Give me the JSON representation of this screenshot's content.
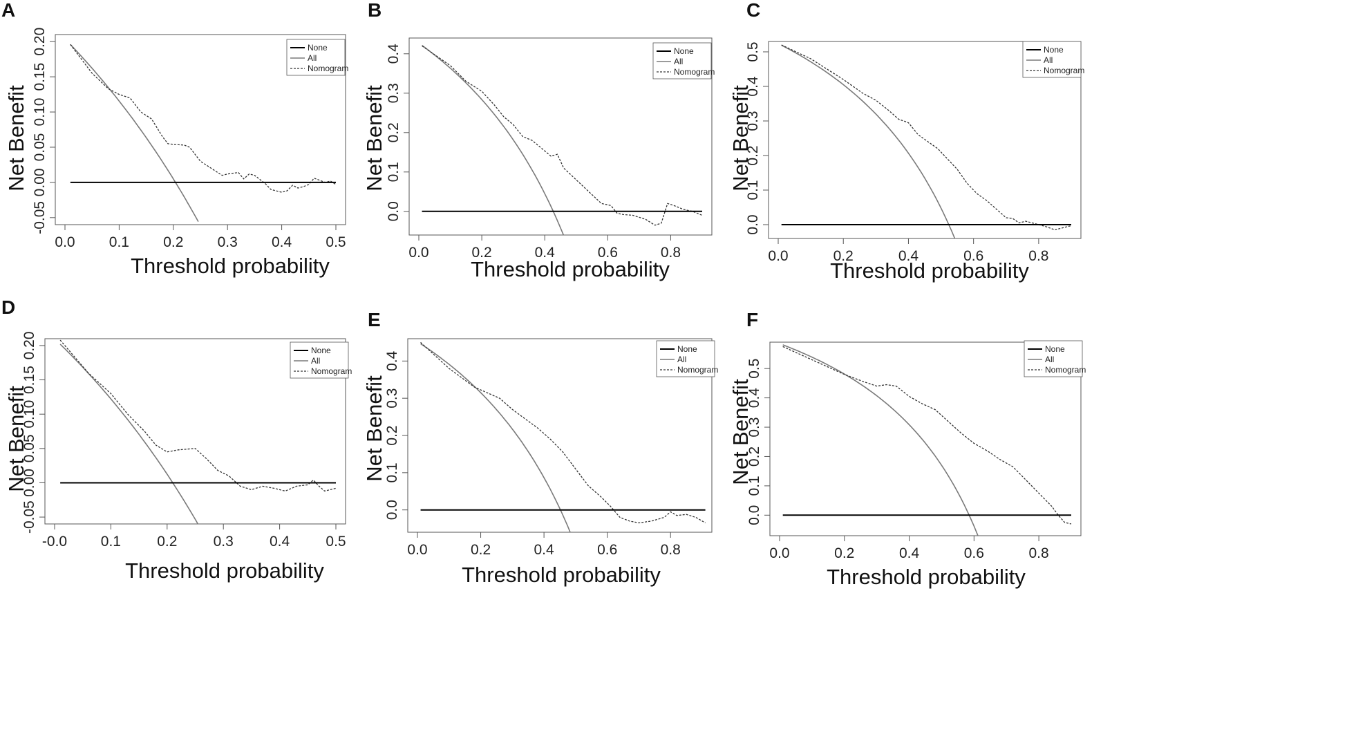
{
  "figure": {
    "labels": [
      "A",
      "B",
      "C",
      "D",
      "E",
      "F"
    ]
  },
  "legend": {
    "items": [
      "None",
      "All",
      "Nomogram"
    ]
  },
  "colors": {
    "none": "#000000",
    "all": "#7a7a7a",
    "nomogram": "#333333",
    "axis": "#555555"
  },
  "chart_data": [
    {
      "type": "line",
      "panel": "A",
      "xlabel": "Threshold probability",
      "ylabel": "Net Benefit",
      "xlim": [
        0.0,
        0.5
      ],
      "ylim": [
        -0.06,
        0.21
      ],
      "xticks": [
        0.0,
        0.1,
        0.2,
        0.3,
        0.4,
        0.5
      ],
      "xtick_labels": [
        "0.0",
        "0.1",
        "0.2",
        "0.3",
        "0.4",
        "0.5"
      ],
      "yticks": [
        -0.05,
        0.0,
        0.05,
        0.1,
        0.15,
        0.2
      ],
      "ytick_labels": [
        "-0.05",
        "0.00",
        "0.05",
        "0.10",
        "0.15",
        "0.20"
      ],
      "legend_position": "top-right",
      "series": [
        {
          "name": "None",
          "x": [
            0.01,
            0.5
          ],
          "y": [
            0.0,
            0.0
          ]
        },
        {
          "name": "All",
          "prevalence": 0.204,
          "x_end": 0.246
        },
        {
          "name": "Nomogram",
          "x": [
            0.01,
            0.05,
            0.08,
            0.1,
            0.12,
            0.14,
            0.16,
            0.18,
            0.19,
            0.2,
            0.22,
            0.23,
            0.25,
            0.27,
            0.29,
            0.3,
            0.32,
            0.33,
            0.34,
            0.35,
            0.37,
            0.38,
            0.4,
            0.41,
            0.42,
            0.43,
            0.44,
            0.45,
            0.46,
            0.47,
            0.48,
            0.49,
            0.5
          ],
          "y": [
            0.196,
            0.155,
            0.133,
            0.125,
            0.12,
            0.1,
            0.09,
            0.065,
            0.055,
            0.054,
            0.053,
            0.05,
            0.03,
            0.02,
            0.01,
            0.012,
            0.014,
            0.005,
            0.012,
            0.01,
            -0.002,
            -0.01,
            -0.014,
            -0.012,
            -0.004,
            -0.008,
            -0.006,
            -0.003,
            0.006,
            0.003,
            0.0,
            0.002,
            -0.003
          ]
        }
      ]
    },
    {
      "type": "line",
      "panel": "B",
      "xlabel": "Threshold probability",
      "ylabel": "Net Benefit",
      "xlim": [
        0.0,
        0.9
      ],
      "ylim": [
        -0.06,
        0.44
      ],
      "xticks": [
        0.0,
        0.2,
        0.4,
        0.6,
        0.8
      ],
      "xtick_labels": [
        "0.0",
        "0.2",
        "0.4",
        "0.6",
        "0.8"
      ],
      "yticks": [
        0.0,
        0.1,
        0.2,
        0.3,
        0.4
      ],
      "ytick_labels": [
        "0.0",
        "0.1",
        "0.2",
        "0.3",
        "0.4"
      ],
      "legend_position": "top-right",
      "series": [
        {
          "name": "None",
          "x": [
            0.01,
            0.9
          ],
          "y": [
            0.0,
            0.0
          ]
        },
        {
          "name": "All",
          "prevalence": 0.427,
          "x_end": 0.46
        },
        {
          "name": "Nomogram",
          "x": [
            0.01,
            0.1,
            0.15,
            0.2,
            0.24,
            0.27,
            0.3,
            0.33,
            0.36,
            0.39,
            0.42,
            0.44,
            0.46,
            0.5,
            0.54,
            0.58,
            0.61,
            0.63,
            0.65,
            0.68,
            0.72,
            0.75,
            0.77,
            0.79,
            0.81,
            0.84,
            0.87,
            0.9
          ],
          "y": [
            0.42,
            0.37,
            0.33,
            0.305,
            0.27,
            0.24,
            0.22,
            0.19,
            0.18,
            0.16,
            0.14,
            0.145,
            0.11,
            0.08,
            0.05,
            0.02,
            0.015,
            -0.005,
            -0.008,
            -0.01,
            -0.02,
            -0.035,
            -0.03,
            0.02,
            0.015,
            0.005,
            0.0,
            -0.01
          ]
        }
      ]
    },
    {
      "type": "line",
      "panel": "C",
      "xlabel": "Threshold probability",
      "ylabel": "Net Benefit",
      "xlim": [
        0.0,
        0.9
      ],
      "ylim": [
        -0.04,
        0.53
      ],
      "xticks": [
        0.0,
        0.2,
        0.4,
        0.6,
        0.8
      ],
      "xtick_labels": [
        "0.0",
        "0.2",
        "0.4",
        "0.6",
        "0.8"
      ],
      "yticks": [
        0.0,
        0.1,
        0.2,
        0.3,
        0.4,
        0.5
      ],
      "ytick_labels": [
        "0.0",
        "0.1",
        "0.2",
        "0.3",
        "0.4",
        "0.5"
      ],
      "legend_position": "top-right",
      "series": [
        {
          "name": "None",
          "x": [
            0.01,
            0.9
          ],
          "y": [
            0.0,
            0.0
          ]
        },
        {
          "name": "All",
          "prevalence": 0.524,
          "x_end": 0.56
        },
        {
          "name": "Nomogram",
          "x": [
            0.01,
            0.1,
            0.2,
            0.26,
            0.3,
            0.34,
            0.37,
            0.4,
            0.43,
            0.46,
            0.49,
            0.52,
            0.55,
            0.58,
            0.61,
            0.64,
            0.67,
            0.7,
            0.72,
            0.74,
            0.76,
            0.78,
            0.8,
            0.82,
            0.85,
            0.87,
            0.9
          ],
          "y": [
            0.52,
            0.48,
            0.42,
            0.38,
            0.36,
            0.33,
            0.305,
            0.295,
            0.26,
            0.24,
            0.22,
            0.19,
            0.16,
            0.12,
            0.09,
            0.07,
            0.045,
            0.02,
            0.018,
            0.005,
            0.01,
            0.005,
            0.0,
            -0.005,
            -0.015,
            -0.01,
            -0.003
          ]
        }
      ]
    },
    {
      "type": "line",
      "panel": "D",
      "xlabel": "Threshold probability",
      "ylabel": "Net Benefit",
      "xlim": [
        0.0,
        0.5
      ],
      "ylim": [
        -0.06,
        0.21
      ],
      "xticks": [
        0.0,
        0.1,
        0.2,
        0.3,
        0.4,
        0.5
      ],
      "xtick_labels": [
        "-0.0",
        "0.1",
        "0.2",
        "0.3",
        "0.4",
        "0.5"
      ],
      "yticks": [
        -0.05,
        0.0,
        0.05,
        0.1,
        0.15,
        0.2
      ],
      "ytick_labels": [
        "-0.05",
        "0.00",
        "0.05",
        "0.10",
        "0.15",
        "0.20"
      ],
      "legend_position": "top-right",
      "series": [
        {
          "name": "None",
          "x": [
            0.01,
            0.5
          ],
          "y": [
            0.0,
            0.0
          ]
        },
        {
          "name": "All",
          "prevalence": 0.21,
          "x_end": 0.26
        },
        {
          "name": "Nomogram",
          "x": [
            0.01,
            0.06,
            0.1,
            0.13,
            0.16,
            0.18,
            0.2,
            0.22,
            0.25,
            0.27,
            0.29,
            0.31,
            0.33,
            0.35,
            0.37,
            0.39,
            0.41,
            0.43,
            0.45,
            0.46,
            0.47,
            0.48,
            0.5
          ],
          "y": [
            0.208,
            0.16,
            0.13,
            0.1,
            0.075,
            0.055,
            0.045,
            0.048,
            0.05,
            0.035,
            0.018,
            0.01,
            -0.005,
            -0.01,
            -0.005,
            -0.008,
            -0.012,
            -0.005,
            -0.003,
            0.004,
            -0.005,
            -0.012,
            -0.008
          ]
        }
      ]
    },
    {
      "type": "line",
      "panel": "E",
      "xlabel": "Threshold probability",
      "ylabel": "Net Benefit",
      "xlim": [
        0.0,
        0.9
      ],
      "ylim": [
        -0.06,
        0.46
      ],
      "xticks": [
        0.0,
        0.2,
        0.4,
        0.6,
        0.8
      ],
      "xtick_labels": [
        "0.0",
        "0.2",
        "0.4",
        "0.6",
        "0.8"
      ],
      "yticks": [
        0.0,
        0.1,
        0.2,
        0.3,
        0.4
      ],
      "ytick_labels": [
        "0.0",
        "0.1",
        "0.2",
        "0.3",
        "0.4"
      ],
      "legend_position": "top-right",
      "series": [
        {
          "name": "None",
          "x": [
            0.01,
            0.91
          ],
          "y": [
            0.0,
            0.0
          ]
        },
        {
          "name": "All",
          "prevalence": 0.452,
          "x_end": 0.49
        },
        {
          "name": "Nomogram",
          "x": [
            0.01,
            0.1,
            0.18,
            0.22,
            0.26,
            0.3,
            0.34,
            0.38,
            0.42,
            0.46,
            0.5,
            0.54,
            0.58,
            0.61,
            0.64,
            0.67,
            0.7,
            0.74,
            0.78,
            0.8,
            0.82,
            0.85,
            0.88,
            0.91
          ],
          "y": [
            0.45,
            0.38,
            0.33,
            0.315,
            0.3,
            0.27,
            0.245,
            0.22,
            0.19,
            0.155,
            0.11,
            0.065,
            0.035,
            0.01,
            -0.02,
            -0.03,
            -0.035,
            -0.03,
            -0.02,
            -0.005,
            -0.015,
            -0.012,
            -0.02,
            -0.035
          ]
        }
      ]
    },
    {
      "type": "line",
      "panel": "F",
      "xlabel": "Threshold probability",
      "ylabel": "Net Benefit",
      "xlim": [
        0.0,
        0.9
      ],
      "ylim": [
        -0.07,
        0.59
      ],
      "xticks": [
        0.0,
        0.2,
        0.4,
        0.6,
        0.8
      ],
      "xtick_labels": [
        "0.0",
        "0.2",
        "0.4",
        "0.6",
        "0.8"
      ],
      "yticks": [
        0.0,
        0.1,
        0.2,
        0.3,
        0.4,
        0.5
      ],
      "ytick_labels": [
        "0.0",
        "0.1",
        "0.2",
        "0.3",
        "0.4",
        "0.5"
      ],
      "legend_position": "top-right",
      "series": [
        {
          "name": "None",
          "x": [
            0.01,
            0.9
          ],
          "y": [
            0.0,
            0.0
          ]
        },
        {
          "name": "All",
          "prevalence": 0.585,
          "x_end": 0.62
        },
        {
          "name": "Nomogram",
          "x": [
            0.01,
            0.1,
            0.2,
            0.26,
            0.3,
            0.33,
            0.36,
            0.4,
            0.44,
            0.48,
            0.52,
            0.56,
            0.6,
            0.64,
            0.68,
            0.72,
            0.76,
            0.8,
            0.84,
            0.86,
            0.88,
            0.9
          ],
          "y": [
            0.575,
            0.53,
            0.48,
            0.455,
            0.44,
            0.445,
            0.44,
            0.405,
            0.38,
            0.36,
            0.32,
            0.28,
            0.245,
            0.22,
            0.19,
            0.165,
            0.12,
            0.075,
            0.03,
            0.0,
            -0.025,
            -0.03
          ]
        }
      ]
    }
  ]
}
